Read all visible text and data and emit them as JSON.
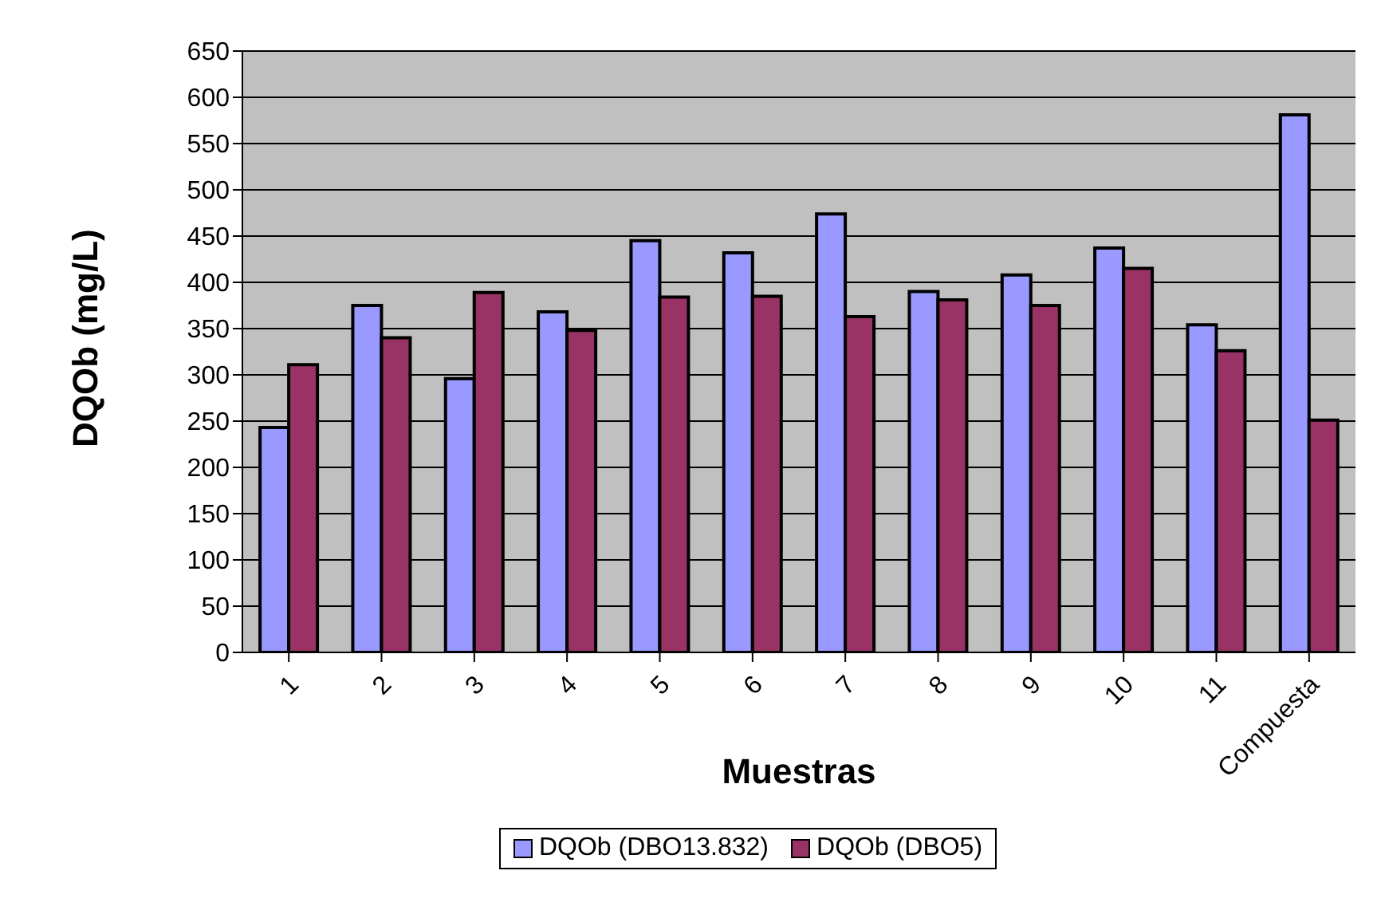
{
  "chart_data": {
    "type": "bar",
    "xlabel": "Muestras",
    "ylabel": "DQOb (mg/L)",
    "categories": [
      "1",
      "2",
      "3",
      "4",
      "5",
      "6",
      "7",
      "8",
      "9",
      "10",
      "11",
      "Compuesta"
    ],
    "series": [
      {
        "name": "DQOb (DBO13.832)",
        "color": "#9999ff",
        "values": [
          243,
          375,
          296,
          368,
          445,
          432,
          474,
          390,
          408,
          437,
          354,
          581
        ]
      },
      {
        "name": "DQOb (DBO5)",
        "color": "#993366",
        "values": [
          311,
          340,
          389,
          348,
          384,
          385,
          363,
          381,
          375,
          415,
          326,
          251
        ]
      }
    ],
    "ylim": [
      0,
      650
    ],
    "yticks": [
      0,
      50,
      100,
      150,
      200,
      250,
      300,
      350,
      400,
      450,
      500,
      550,
      600,
      650
    ],
    "grid": "y",
    "legend": "bottom"
  }
}
